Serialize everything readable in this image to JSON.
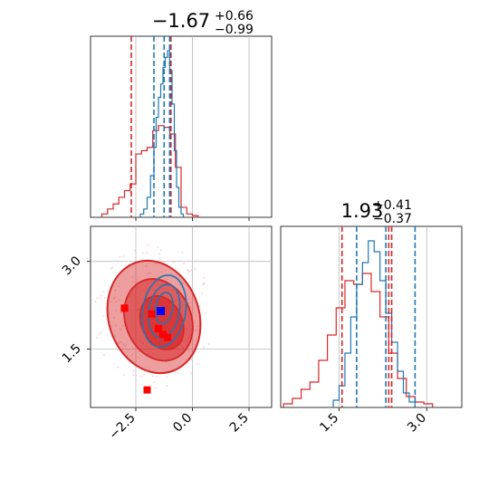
{
  "chart_data": {
    "type": "corner",
    "grid": true,
    "colors": {
      "model_a": "#d62728",
      "model_b": "#1f77b4",
      "truth_marker": "#0000ff",
      "sample_marker": "#ff0000"
    },
    "param1": {
      "title": {
        "median": "−1.67",
        "plus": "+0.66",
        "minus": "−0.99"
      },
      "range": [
        -4.5,
        3.5
      ],
      "ticks": [
        -2.5,
        0.0,
        2.5
      ],
      "tick_labels": [
        "−2.5",
        "0.0",
        "2.5"
      ],
      "model_a_hist": {
        "edges": [
          -4.0,
          -3.75,
          -3.5,
          -3.25,
          -3.0,
          -2.75,
          -2.5,
          -2.25,
          -2.0,
          -1.75,
          -1.5,
          -1.25,
          -1.0,
          -0.75,
          -0.5,
          -0.25,
          0.0,
          0.25
        ],
        "counts": [
          0.02,
          0.05,
          0.08,
          0.12,
          0.16,
          0.2,
          0.38,
          0.4,
          0.42,
          0.52,
          0.55,
          0.54,
          0.5,
          0.3,
          0.06,
          0.02,
          0.01
        ]
      },
      "model_b_hist": {
        "edges": [
          -2.3,
          -2.15,
          -2.0,
          -1.85,
          -1.7,
          -1.6,
          -1.5,
          -1.4,
          -1.3,
          -1.2,
          -1.1,
          -1.0,
          -0.9,
          -0.8,
          -0.7,
          -0.6,
          -0.5,
          -0.4
        ],
        "counts": [
          0.02,
          0.05,
          0.12,
          0.25,
          0.42,
          0.6,
          0.72,
          0.8,
          0.9,
          0.96,
          1.0,
          0.88,
          0.68,
          0.4,
          0.18,
          0.06,
          0.02
        ]
      },
      "quantiles_a": [
        -2.7,
        -1.0,
        -0.95
      ],
      "quantiles_b": [
        -1.7,
        -1.25,
        -1.0
      ]
    },
    "param2": {
      "title": {
        "median": "1.93",
        "plus": "+0.41",
        "minus": "−0.37"
      },
      "range": [
        0.5,
        3.6
      ],
      "ticks": [
        1.5,
        3.0
      ],
      "tick_labels": [
        "1.5",
        "3.0"
      ],
      "model_a_hist": {
        "edges": [
          0.55,
          0.7,
          0.85,
          1.0,
          1.15,
          1.3,
          1.45,
          1.6,
          1.75,
          1.9,
          2.05,
          2.2,
          2.35,
          2.5,
          2.65,
          2.8,
          2.95,
          3.1
        ],
        "counts": [
          0.02,
          0.05,
          0.1,
          0.14,
          0.26,
          0.4,
          0.55,
          0.7,
          0.68,
          0.74,
          0.64,
          0.5,
          0.3,
          0.16,
          0.06,
          0.03,
          0.02
        ]
      },
      "model_b_hist": {
        "edges": [
          1.4,
          1.5,
          1.6,
          1.7,
          1.8,
          1.9,
          2.0,
          2.1,
          2.2,
          2.3,
          2.4,
          2.5,
          2.6,
          2.7,
          2.8
        ],
        "counts": [
          0.04,
          0.12,
          0.3,
          0.5,
          0.68,
          0.8,
          0.92,
          0.86,
          0.7,
          0.52,
          0.36,
          0.2,
          0.08,
          0.03
        ]
      },
      "quantiles_a": [
        1.55,
        2.35,
        2.4
      ],
      "quantiles_b": [
        1.8,
        2.3,
        2.8
      ]
    },
    "joint": {
      "x_range": [
        -4.5,
        3.5
      ],
      "y_range": [
        0.5,
        3.6
      ],
      "x_ticks": [
        -2.5,
        0.0,
        2.5
      ],
      "x_tick_labels": [
        "−2.5",
        "0.0",
        "2.5"
      ],
      "y_ticks": [
        1.5,
        3.0
      ],
      "y_tick_labels": [
        "1.5",
        "3.0"
      ],
      "model_a_contours": [
        {
          "level": "outer",
          "cx": -1.7,
          "cy": 2.05,
          "rx": 2.0,
          "ry": 0.98,
          "rot": -18
        },
        {
          "level": "mid",
          "cx": -1.5,
          "cy": 2.0,
          "rx": 1.45,
          "ry": 0.72,
          "rot": -22
        },
        {
          "level": "inner",
          "cx": -1.35,
          "cy": 1.95,
          "rx": 0.9,
          "ry": 0.48,
          "rot": -25
        }
      ],
      "model_b_contours": [
        {
          "level": "outer",
          "cx": -1.25,
          "cy": 2.15,
          "rx": 0.95,
          "ry": 0.62,
          "rot": 10
        },
        {
          "level": "mid",
          "cx": -1.25,
          "cy": 2.15,
          "rx": 0.68,
          "ry": 0.46,
          "rot": 10
        },
        {
          "level": "inner",
          "cx": -1.25,
          "cy": 2.2,
          "rx": 0.38,
          "ry": 0.27,
          "rot": 10
        }
      ],
      "truth_point": {
        "x": -1.4,
        "y": 2.15
      },
      "sample_points": [
        {
          "x": -3.0,
          "y": 2.2
        },
        {
          "x": -1.8,
          "y": 2.1
        },
        {
          "x": -1.3,
          "y": 1.75
        },
        {
          "x": -1.1,
          "y": 1.7
        },
        {
          "x": -1.5,
          "y": 1.85
        },
        {
          "x": -2.0,
          "y": 0.8
        }
      ]
    }
  }
}
